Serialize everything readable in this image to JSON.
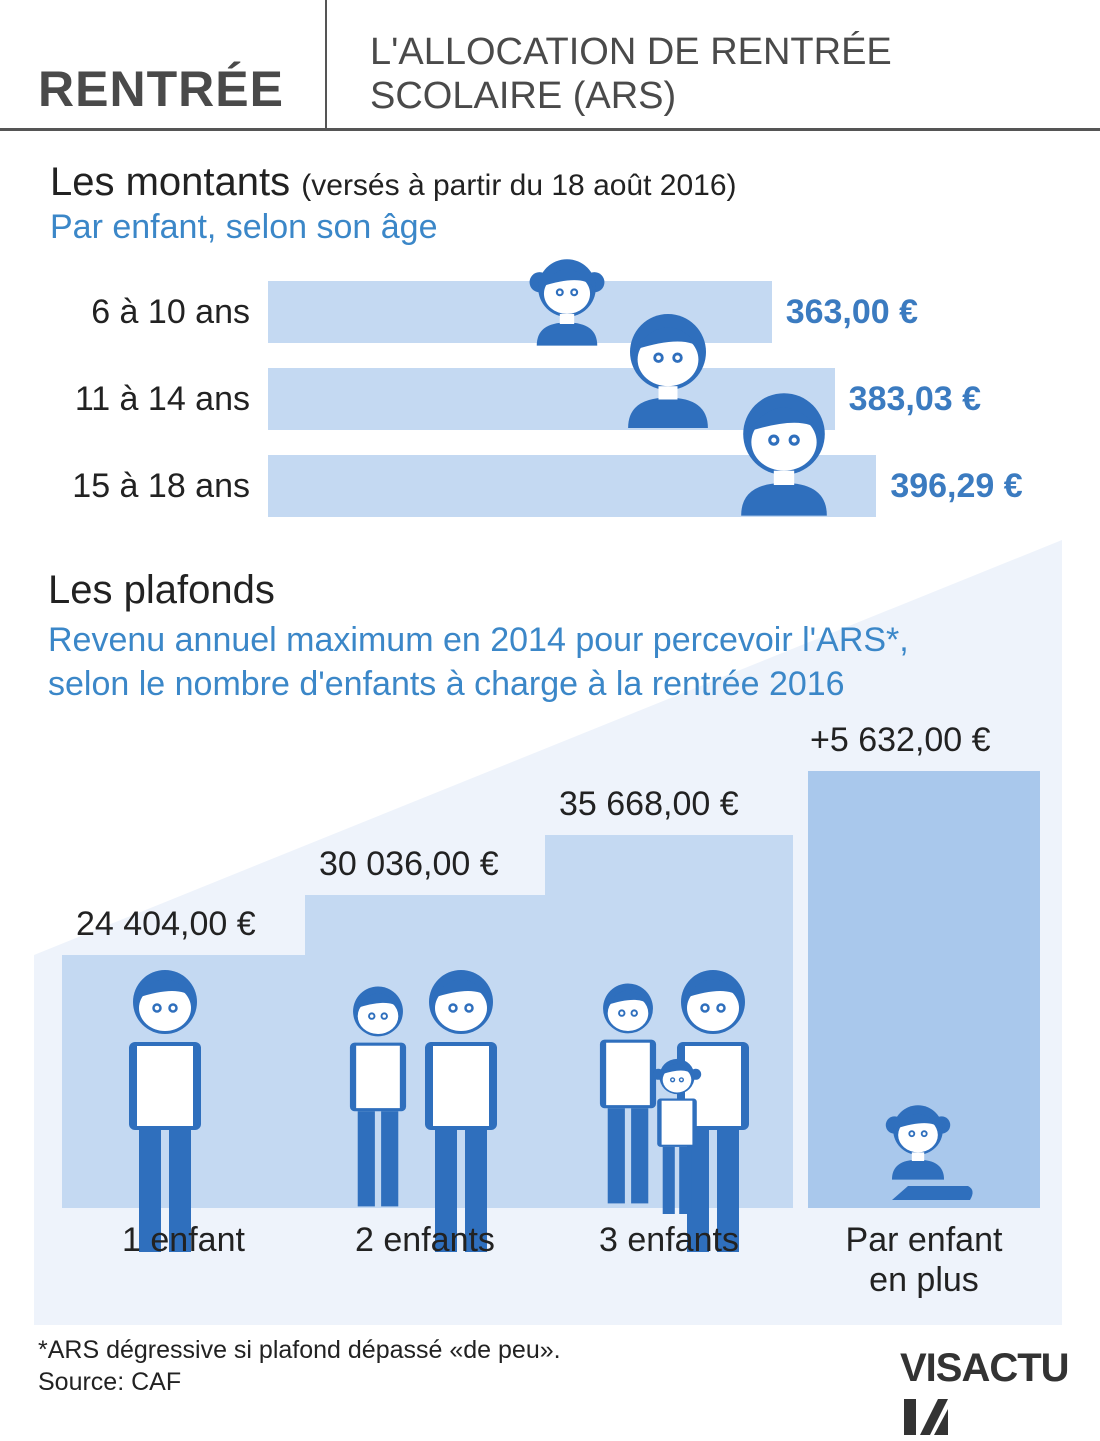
{
  "header": {
    "left_title": "RENTRÉE",
    "right_title_line1": "L'ALLOCATION DE RENTRÉE",
    "right_title_line2": "SCOLAIRE (ARS)"
  },
  "amounts": {
    "title": "Les montants",
    "title_note": "(versés à partir du 18 août 2016)",
    "subtitle": "Par enfant, selon son âge"
  },
  "caps": {
    "title": "Les plafonds",
    "subtitle_line1": "Revenu annuel maximum en 2014 pour percevoir l'ARS*,",
    "subtitle_line2": "selon le nombre d'enfants à charge à la rentrée 2016"
  },
  "chart_data": [
    {
      "type": "bar",
      "title": "Les montants",
      "categories": [
        "6 à 10 ans",
        "11 à 14 ans",
        "15 à 18 ans"
      ],
      "values": [
        363.0,
        383.03,
        396.29
      ],
      "value_labels": [
        "363,00 €",
        "383,03 €",
        "396,29 €"
      ],
      "unit": "€",
      "orientation": "horizontal"
    },
    {
      "type": "bar",
      "title": "Les plafonds",
      "categories": [
        "1 enfant",
        "2 enfants",
        "3 enfants",
        "Par enfant en plus"
      ],
      "category_lines": [
        [
          "1 enfant"
        ],
        [
          "2 enfants"
        ],
        [
          "3 enfants"
        ],
        [
          "Par enfant",
          "en plus"
        ]
      ],
      "values": [
        24404.0,
        30036.0,
        35668.0,
        5632.0
      ],
      "value_labels": [
        "24 404,00 €",
        "30 036,00 €",
        "35 668,00 €",
        "+5 632,00 €"
      ],
      "unit": "€"
    }
  ],
  "footer": {
    "note": "*ARS dégressive si plafond dépassé «de peu».",
    "source": "Source: CAF",
    "logo": "VISACTU"
  },
  "colors": {
    "accent": "#3b7bc0",
    "bar_light": "#c4d9f2",
    "bar_mid": "#a9c8ec",
    "icon_blue": "#2f6fbd"
  }
}
